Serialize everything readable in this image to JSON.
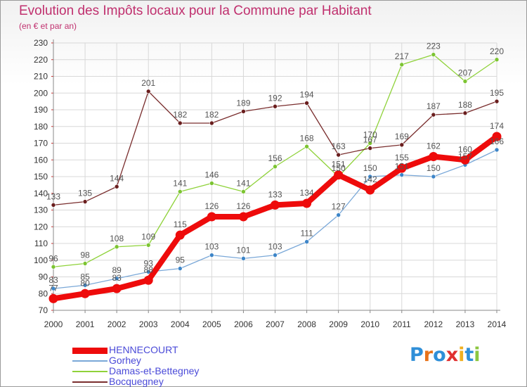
{
  "header": {
    "title": "Evolution des Impôts locaux pour la Commune par Habitant",
    "subtitle": "(en € et par an)"
  },
  "logo": {
    "text": "Proxiti",
    "colors": [
      "#2f8fd8",
      "#e8731a",
      "#2f8fd8",
      "#e03030",
      "#f0b020",
      "#2f8fd8",
      "#8cc63f"
    ]
  },
  "colors": {
    "title": "#c0306e",
    "axis": "#888888",
    "grid": "#d8d8d8",
    "label": "#555555",
    "legend_text": "#4a4ad8"
  },
  "chart_data": {
    "type": "line",
    "title": "Evolution des Impôts locaux pour la Commune par Habitant",
    "xlabel": "",
    "ylabel": "",
    "x": [
      2000,
      2001,
      2002,
      2003,
      2004,
      2005,
      2006,
      2007,
      2008,
      2009,
      2010,
      2011,
      2012,
      2013,
      2014
    ],
    "ylim": [
      70,
      230
    ],
    "yticks": [
      70,
      80,
      90,
      100,
      110,
      120,
      130,
      140,
      150,
      160,
      170,
      180,
      190,
      200,
      210,
      220,
      230
    ],
    "grid": true,
    "legend_position": "bottom",
    "series": [
      {
        "name": "Damas-et-Bettegney",
        "color": "#8fd23a",
        "marker": "#7cc432",
        "style": "thin",
        "values": [
          96,
          98,
          108,
          109,
          141,
          146,
          141,
          156,
          168,
          150,
          170,
          217,
          223,
          207,
          220
        ]
      },
      {
        "name": "Gorhey",
        "color": "#7aa8d8",
        "marker": "#3d85c8",
        "style": "thin",
        "values": [
          83,
          85,
          89,
          93,
          95,
          103,
          101,
          103,
          111,
          127,
          150,
          151,
          150,
          157,
          166
        ]
      },
      {
        "name": "Bocquegney",
        "color": "#7a2e2e",
        "marker": "#6a1e1e",
        "style": "thin",
        "values": [
          133,
          135,
          144,
          201,
          182,
          182,
          189,
          192,
          194,
          163,
          167,
          169,
          187,
          188,
          195
        ]
      },
      {
        "name": "HENNECOURT",
        "color": "#ee0b0b",
        "marker": "#ee0b0b",
        "style": "thick",
        "values": [
          77,
          80,
          83,
          88,
          115,
          126,
          126,
          133,
          134,
          151,
          142,
          155,
          162,
          160,
          174
        ]
      }
    ]
  },
  "legend": [
    {
      "name": "HENNECOURT",
      "color": "#ee0b0b",
      "thick": true
    },
    {
      "name": "Gorhey",
      "color": "#7aa8d8",
      "thick": false
    },
    {
      "name": "Damas-et-Bettegney",
      "color": "#8fd23a",
      "thick": false
    },
    {
      "name": "Bocquegney",
      "color": "#7a2e2e",
      "thick": false
    }
  ]
}
